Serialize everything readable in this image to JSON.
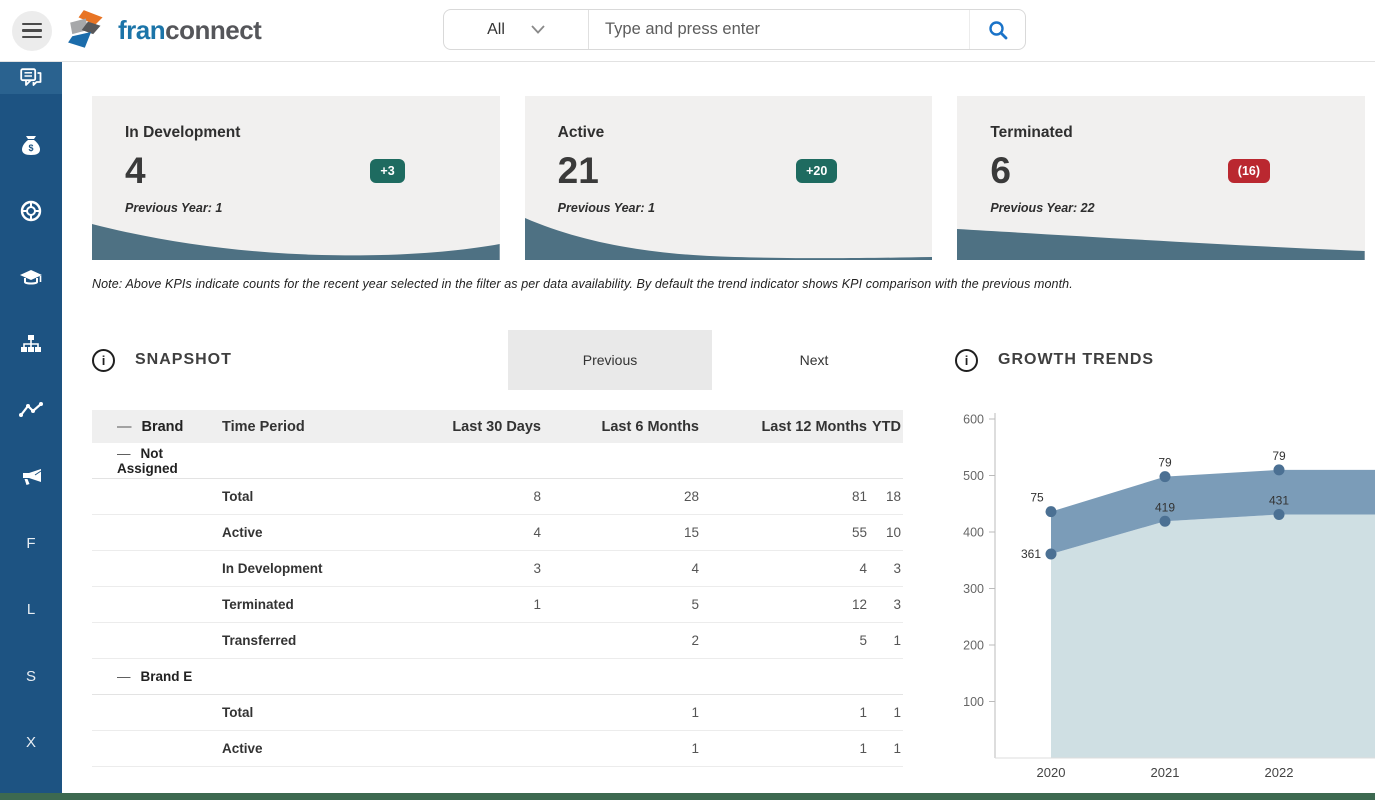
{
  "header": {
    "logo": {
      "brand_primary": "fran",
      "brand_secondary": "connect"
    },
    "search": {
      "category": "All",
      "placeholder": "Type and press enter"
    }
  },
  "sidebar": {
    "items": [
      {
        "name": "messages",
        "type": "icon"
      },
      {
        "name": "money-bag",
        "type": "icon"
      },
      {
        "name": "support-ring",
        "type": "icon"
      },
      {
        "name": "training-cap",
        "type": "icon"
      },
      {
        "name": "hierarchy",
        "type": "icon"
      },
      {
        "name": "performance-trend",
        "type": "icon"
      },
      {
        "name": "announcements",
        "type": "icon"
      },
      {
        "name": "F",
        "type": "letter",
        "label": "F"
      },
      {
        "name": "L",
        "type": "letter",
        "label": "L"
      },
      {
        "name": "S",
        "type": "letter",
        "label": "S"
      },
      {
        "name": "X",
        "type": "letter",
        "label": "X"
      }
    ]
  },
  "kpi": {
    "cards": [
      {
        "title": "In Development",
        "value": "4",
        "delta": "+3",
        "trend": "up",
        "previous": "Previous Year: 1"
      },
      {
        "title": "Active",
        "value": "21",
        "delta": "+20",
        "trend": "up",
        "previous": "Previous Year: 1"
      },
      {
        "title": "Terminated",
        "value": "6",
        "delta": "(16)",
        "trend": "down",
        "previous": "Previous Year: 22"
      }
    ],
    "note": "Note: Above KPIs indicate counts for the recent year selected in the filter as per data availability.  By default the trend indicator shows KPI comparison with the previous month."
  },
  "snapshot": {
    "title": "SNAPSHOT",
    "tabs": {
      "previous": "Previous",
      "next": "Next"
    },
    "table": {
      "columns": [
        "Brand",
        "Time Period",
        "Last 30 Days",
        "Last 6 Months",
        "Last 12 Months",
        "YTD"
      ],
      "groups": [
        {
          "name": "Not Assigned",
          "rows": [
            {
              "label": "Total",
              "values": [
                "8",
                "28",
                "81",
                "18"
              ]
            },
            {
              "label": "Active",
              "values": [
                "4",
                "15",
                "55",
                "10"
              ]
            },
            {
              "label": "In Development",
              "values": [
                "3",
                "4",
                "4",
                "3"
              ]
            },
            {
              "label": "Terminated",
              "values": [
                "1",
                "5",
                "12",
                "3"
              ]
            },
            {
              "label": "Transferred",
              "values": [
                "",
                "2",
                "5",
                "1"
              ]
            }
          ]
        },
        {
          "name": "Brand E",
          "rows": [
            {
              "label": "Total",
              "values": [
                "",
                "1",
                "1",
                "1"
              ]
            },
            {
              "label": "Active",
              "values": [
                "",
                "1",
                "1",
                "1"
              ]
            }
          ]
        }
      ]
    }
  },
  "growth": {
    "title": "GROWTH TRENDS",
    "chart_data": {
      "type": "area",
      "stacked": true,
      "x": [
        "2020",
        "2021",
        "2022"
      ],
      "series": [
        {
          "name": "lower-band",
          "values": [
            361,
            419,
            431
          ]
        },
        {
          "name": "upper-band",
          "values": [
            75,
            79,
            79
          ]
        }
      ],
      "ylim": [
        0,
        600
      ],
      "yticks": [
        100,
        200,
        300,
        400,
        500,
        600
      ],
      "grid": false,
      "legend": "none",
      "colors": {
        "upper_area": "#7b9cb8",
        "lower_area": "#cfdfe3",
        "dot": "#4b7093",
        "axis": "#bbbbbb"
      },
      "point_labels": {
        "lower": [
          "361",
          "419",
          "431"
        ],
        "upper": [
          "75",
          "79",
          "79"
        ]
      }
    }
  },
  "colors": {
    "sidebar": "#1d5382",
    "badge_up": "#1e6b60",
    "badge_down": "#ba2830",
    "card_wave": "#4e7183",
    "bottom_bar": "#3d6950",
    "brand_blue": "#1b74a8"
  }
}
